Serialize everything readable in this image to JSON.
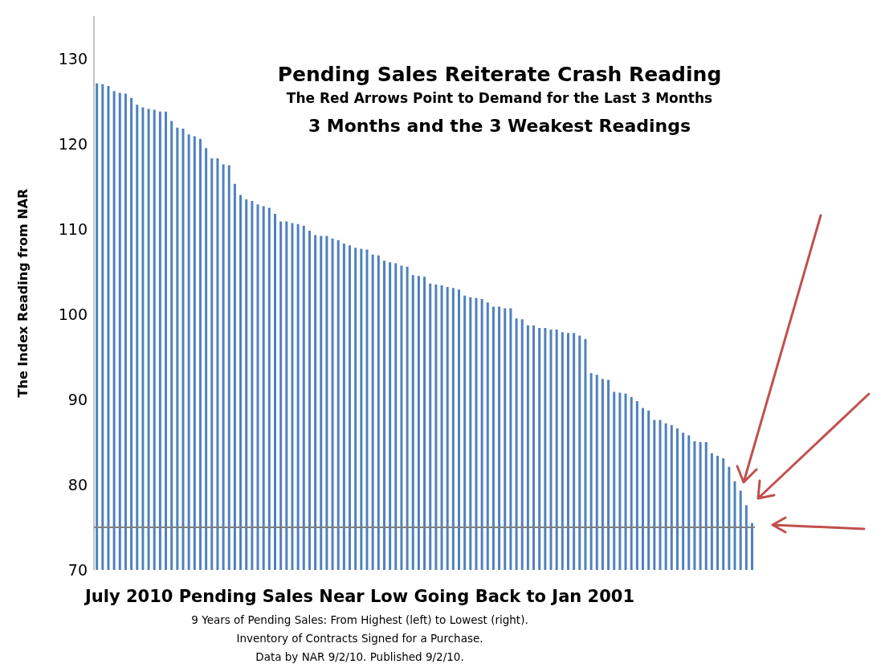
{
  "chart_data": {
    "type": "bar",
    "title": "Pending Sales Reiterate Crash Reading",
    "subtitle": "The Red Arrows Point to Demand for the Last 3 Months",
    "xlabel": "July 2010 Pending Sales Near Low Going Back to Jan 2001",
    "ylabel": "The Index Reading from NAR",
    "annotations": [
      "3 Months and the 3 Weakest Readings",
      "9 Years of Pending Sales: From Highest (left) to Lowest (right).",
      "Inventory of Contracts Signed for a Purchase.",
      "Data by NAR 9/2/10. Published 9/2/10."
    ],
    "categories": [
      null,
      null,
      null,
      null,
      null,
      null,
      null,
      null,
      null,
      null,
      null,
      null,
      null,
      null,
      null,
      null,
      null,
      null,
      null,
      null,
      null,
      null,
      null,
      null,
      null,
      null,
      null,
      null,
      null,
      null,
      null,
      null,
      null,
      null,
      null,
      null,
      null,
      null,
      null,
      null,
      null,
      null,
      null,
      null,
      null,
      null,
      null,
      null,
      null,
      null,
      null,
      null,
      null,
      null,
      null,
      null,
      null,
      null,
      null,
      null,
      null,
      null,
      null,
      null,
      null,
      null,
      null,
      null,
      null,
      null,
      null,
      null,
      null,
      null,
      null,
      null,
      null,
      null,
      null,
      null,
      null,
      null,
      null,
      null,
      null,
      null,
      null,
      null,
      null,
      null,
      null,
      null,
      null,
      null,
      null,
      null,
      null,
      null,
      null,
      null,
      null,
      null,
      null,
      null,
      null,
      null,
      null,
      null,
      null,
      null,
      null,
      null,
      null,
      null,
      null
    ],
    "values": [
      127.1,
      127.0,
      126.8,
      126.2,
      126.0,
      125.9,
      125.4,
      124.6,
      124.3,
      124.1,
      124.0,
      123.8,
      123.8,
      122.7,
      121.9,
      121.8,
      121.1,
      120.9,
      120.6,
      119.5,
      118.3,
      118.3,
      117.6,
      117.5,
      115.3,
      114.0,
      113.5,
      113.3,
      112.9,
      112.7,
      112.5,
      111.8,
      110.9,
      110.9,
      110.7,
      110.6,
      110.4,
      109.8,
      109.3,
      109.2,
      109.2,
      108.9,
      108.7,
      108.3,
      108.1,
      107.8,
      107.7,
      107.6,
      107.0,
      106.9,
      106.3,
      106.1,
      106.0,
      105.7,
      105.6,
      104.6,
      104.5,
      104.4,
      103.6,
      103.5,
      103.4,
      103.2,
      103.1,
      102.9,
      102.2,
      102.0,
      101.9,
      101.8,
      101.4,
      100.9,
      100.9,
      100.7,
      100.7,
      99.5,
      99.4,
      98.7,
      98.7,
      98.4,
      98.4,
      98.2,
      98.2,
      97.9,
      97.8,
      97.8,
      97.5,
      97.1,
      93.1,
      92.9,
      92.4,
      92.3,
      90.9,
      90.8,
      90.7,
      90.3,
      89.8,
      89.0,
      88.7,
      87.6,
      87.6,
      87.2,
      87.0,
      86.6,
      86.1,
      85.8,
      85.1,
      85.0,
      85.0,
      83.7,
      83.4,
      83.1,
      82.1,
      80.4,
      79.3,
      77.6,
      75.5
    ],
    "color": "#4f81bd",
    "ylim": [
      70,
      135
    ],
    "yticks": [
      70,
      80,
      90,
      100,
      110,
      120,
      130
    ],
    "ref_lines": [
      {
        "axis": "y",
        "value": 75,
        "color": "#808080"
      }
    ]
  }
}
